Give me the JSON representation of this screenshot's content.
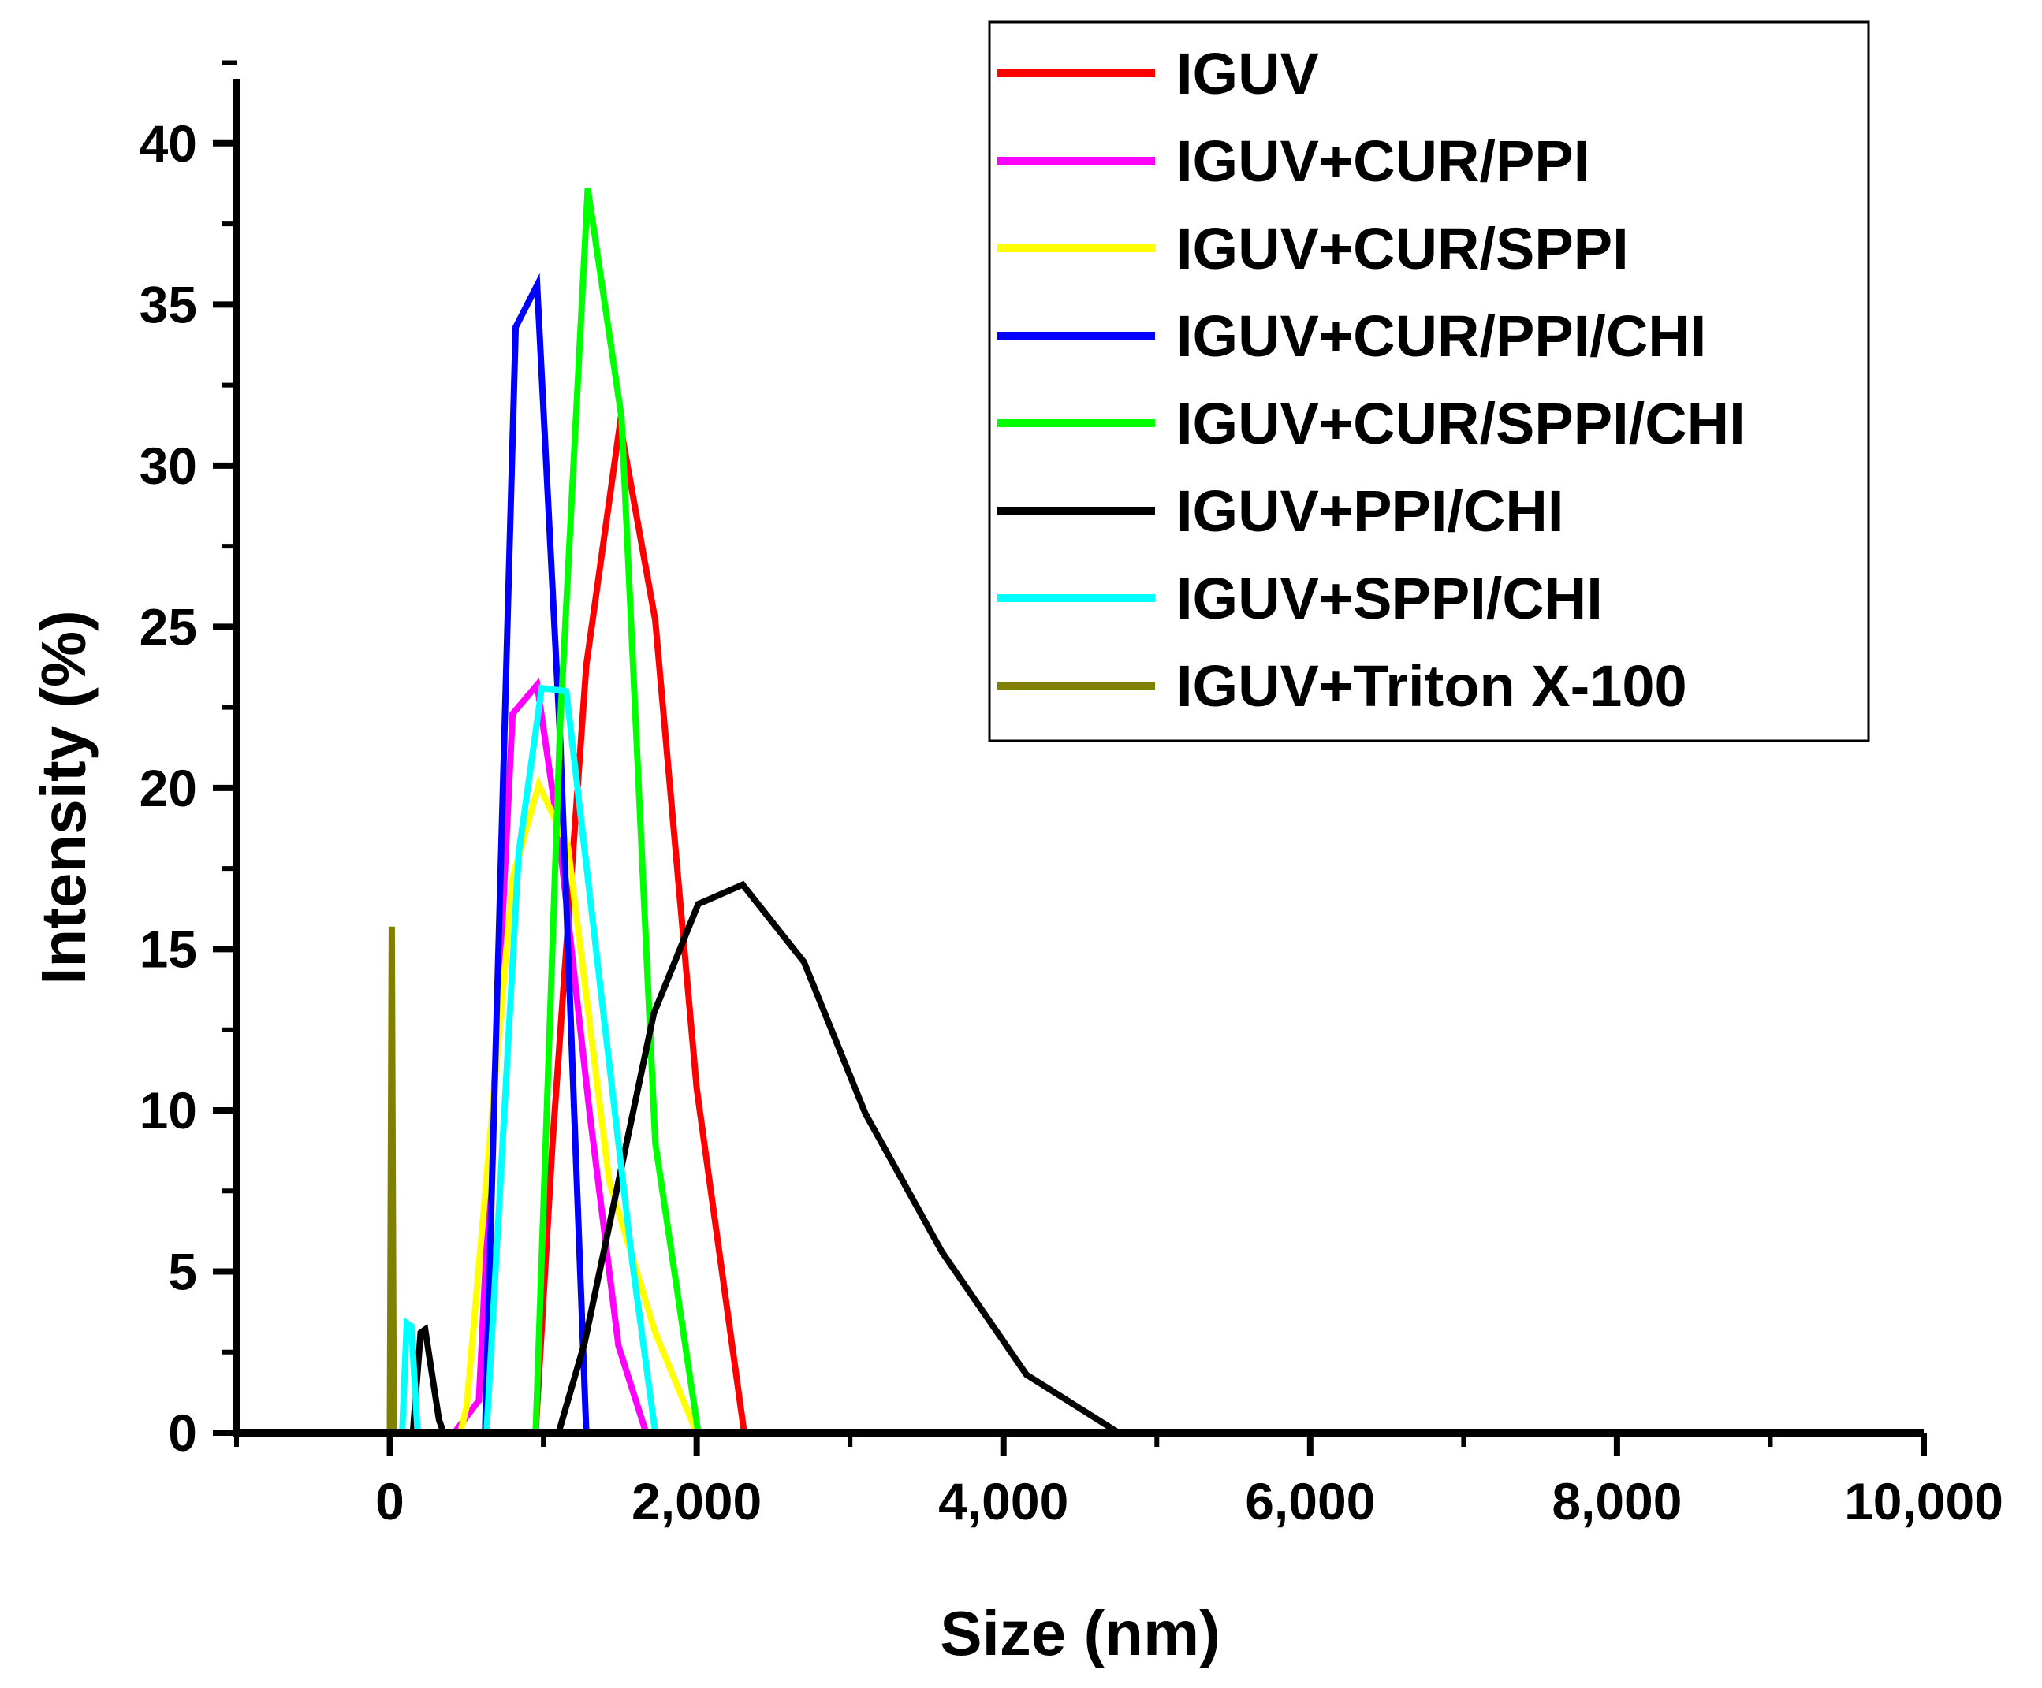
{
  "chart_data": {
    "type": "line",
    "title": "",
    "xlabel": "Size (nm)",
    "ylabel": "Intensity (%)",
    "xlim": [
      -1000,
      10000
    ],
    "ylim": [
      0,
      42
    ],
    "xticks": [
      0,
      2000,
      4000,
      6000,
      8000,
      10000
    ],
    "xtick_labels": [
      "0",
      "2,000",
      "4,000",
      "6,000",
      "8,000",
      "10,000"
    ],
    "yticks": [
      0,
      5,
      10,
      15,
      20,
      25,
      30,
      35,
      40
    ],
    "ytick_labels": [
      "0",
      "5",
      "10",
      "15",
      "20",
      "25",
      "30",
      "35",
      "40"
    ],
    "grid": false,
    "legend_position": "top-right",
    "series": [
      {
        "name": "IGUV",
        "color": "#ff0000",
        "x": [
          0,
          950,
          1060,
          1280,
          1500,
          1730,
          2000,
          2310,
          8650
        ],
        "y": [
          0,
          0,
          9.0,
          23.8,
          31.3,
          25.2,
          10.7,
          0,
          0
        ]
      },
      {
        "name": "IGUV+CUR/PPI",
        "color": "#ff00ff",
        "x": [
          0,
          420,
          580,
          800,
          960,
          1100,
          1300,
          1490,
          1670,
          8650
        ],
        "y": [
          0,
          0,
          1.0,
          22.3,
          23.2,
          18.6,
          10.0,
          2.7,
          0,
          0
        ]
      },
      {
        "name": "IGUV+CUR/SPPI",
        "color": "#ffff00",
        "x": [
          0,
          460,
          500,
          800,
          970,
          1160,
          1430,
          1730,
          2000,
          8650
        ],
        "y": [
          0,
          0,
          0.8,
          17.2,
          20.1,
          18.2,
          7.8,
          3.1,
          0,
          0
        ]
      },
      {
        "name": "IGUV+CUR/PPI/CHI",
        "color": "#0000ff",
        "x": [
          0,
          620,
          820,
          960,
          1110,
          1280,
          8650
        ],
        "y": [
          0,
          0,
          34.3,
          35.6,
          21.5,
          0,
          0
        ]
      },
      {
        "name": "IGUV+CUR/SPPI/CHI",
        "color": "#00ff00",
        "x": [
          0,
          950,
          1110,
          1290,
          1510,
          1730,
          2010,
          8650
        ],
        "y": [
          0,
          0,
          22.0,
          38.6,
          31.5,
          9.0,
          0,
          0
        ]
      },
      {
        "name": "IGUV+PPI/CHI",
        "color": "#000000",
        "x": [
          0,
          150,
          200,
          230,
          320,
          350,
          1100,
          1270,
          1720,
          2010,
          2300,
          2700,
          3100,
          3600,
          4150,
          4750,
          8650
        ],
        "y": [
          0,
          0,
          3.1,
          3.2,
          0.4,
          0,
          0,
          2.8,
          13.0,
          16.4,
          17.0,
          14.6,
          9.9,
          5.6,
          1.8,
          0,
          0
        ]
      },
      {
        "name": "IGUV+SPPI/CHI",
        "color": "#00ffff",
        "x": [
          0,
          80,
          110,
          140,
          180,
          630,
          840,
          990,
          1150,
          1380,
          1580,
          1730,
          8650
        ],
        "y": [
          0,
          0,
          3.4,
          3.3,
          0,
          0,
          18.0,
          23.1,
          23.0,
          13.5,
          5.3,
          0,
          0
        ]
      },
      {
        "name": "IGUV+Triton X-100",
        "color": "#808000",
        "x": [
          0,
          12,
          25,
          8650
        ],
        "y": [
          0,
          15.7,
          0,
          0
        ]
      }
    ]
  }
}
